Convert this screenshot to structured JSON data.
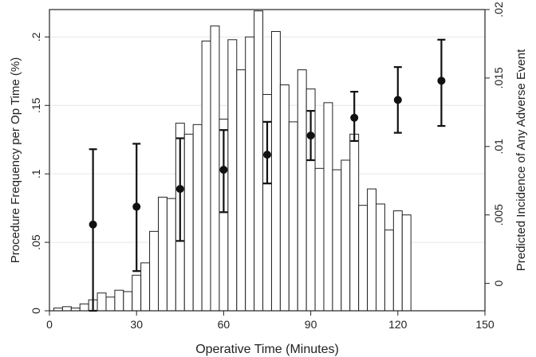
{
  "chart_data": {
    "type": "bar",
    "xlabel": "Operative Time (Minutes)",
    "ylabel_left": "Procedure Frequency per Op Time (%)",
    "ylabel_right": "Predicted Incidence of Any Adverse Event",
    "xlim": [
      0,
      150
    ],
    "ylim_left": [
      0,
      0.22
    ],
    "ylim_right": [
      -0.002,
      0.02
    ],
    "x_ticks": [
      0,
      30,
      60,
      90,
      120,
      150
    ],
    "x_tick_labels": [
      "0",
      "30",
      "60",
      "90",
      "120",
      "150"
    ],
    "y_left_ticks": [
      0,
      0.05,
      0.1,
      0.15,
      0.2
    ],
    "y_left_tick_labels": [
      "0",
      ".05",
      ".1",
      ".15",
      ".2"
    ],
    "y_right_ticks": [
      0,
      0.005,
      0.01,
      0.015,
      0.02
    ],
    "y_right_tick_labels": [
      "0",
      ".005",
      ".01",
      ".015",
      ".02"
    ],
    "grid": true,
    "histogram": {
      "bin_width": 3,
      "bin_start": 1.5,
      "values": [
        0.002,
        0.003,
        0.002,
        0.005,
        0.008,
        0.013,
        0.01,
        0.015,
        0.014,
        0.026,
        0.035,
        0.058,
        0.083,
        0.082,
        0.137,
        0.129,
        0.136,
        0.197,
        0.208,
        0.14,
        0.198,
        0.176,
        0.2,
        0.219,
        0.158,
        0.204,
        0.165,
        0.138,
        0.176,
        0.162,
        0.104,
        0.152,
        0.103,
        0.11,
        0.129,
        0.077,
        0.089,
        0.078,
        0.059,
        0.073,
        0.07
      ]
    },
    "points": {
      "x": [
        15,
        30,
        45,
        60,
        75,
        90,
        105,
        120,
        135
      ],
      "y": [
        0.0043,
        0.0056,
        0.0069,
        0.0083,
        0.0094,
        0.0108,
        0.0121,
        0.0134,
        0.0148
      ],
      "ci_low": [
        -0.002,
        0.0009,
        0.0031,
        0.0052,
        0.0073,
        0.009,
        0.0104,
        0.011,
        0.0115
      ],
      "ci_high": [
        0.0098,
        0.0102,
        0.0106,
        0.0112,
        0.0118,
        0.0126,
        0.014,
        0.0158,
        0.0178
      ]
    }
  }
}
